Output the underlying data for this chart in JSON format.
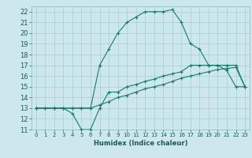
{
  "xlabel": "Humidex (Indice chaleur)",
  "background_color": "#cce8ec",
  "grid_color": "#aacccc",
  "line_color": "#1a7a6e",
  "xlim": [
    -0.5,
    23.5
  ],
  "ylim": [
    11,
    22.5
  ],
  "xticks": [
    0,
    1,
    2,
    3,
    4,
    5,
    6,
    7,
    8,
    9,
    10,
    11,
    12,
    13,
    14,
    15,
    16,
    17,
    18,
    19,
    20,
    21,
    22,
    23
  ],
  "yticks": [
    11,
    12,
    13,
    14,
    15,
    16,
    17,
    18,
    19,
    20,
    21,
    22
  ],
  "series": [
    {
      "x": [
        0,
        1,
        2,
        3,
        4,
        5,
        6,
        7,
        8,
        9,
        10,
        11,
        12,
        13,
        14,
        15,
        16,
        17,
        18,
        19,
        20,
        21,
        22,
        23
      ],
      "y": [
        13,
        13,
        13,
        13,
        12.5,
        11,
        11,
        13,
        14.5,
        14.5,
        15,
        15.2,
        15.5,
        15.7,
        16,
        16.2,
        16.4,
        17,
        17,
        17,
        17,
        16.5,
        15,
        15
      ]
    },
    {
      "x": [
        0,
        1,
        2,
        3,
        4,
        5,
        6,
        7,
        8,
        9,
        10,
        11,
        12,
        13,
        14,
        15,
        16,
        17,
        18,
        19,
        20,
        21,
        22,
        23
      ],
      "y": [
        13,
        13,
        13,
        13,
        13,
        13,
        13,
        13.3,
        13.6,
        14,
        14.2,
        14.5,
        14.8,
        15,
        15.2,
        15.5,
        15.8,
        16,
        16.2,
        16.4,
        16.6,
        16.7,
        16.8,
        15
      ]
    },
    {
      "x": [
        0,
        1,
        2,
        3,
        4,
        5,
        6,
        7,
        8,
        9,
        10,
        11,
        12,
        13,
        14,
        15,
        16,
        17,
        18,
        19,
        20,
        21,
        22,
        23
      ],
      "y": [
        13,
        13,
        13,
        13,
        13,
        13,
        13,
        17,
        18.5,
        20,
        21,
        21.5,
        22,
        22,
        22,
        22.2,
        21,
        19,
        18.5,
        17,
        17,
        17,
        17,
        15
      ]
    }
  ]
}
